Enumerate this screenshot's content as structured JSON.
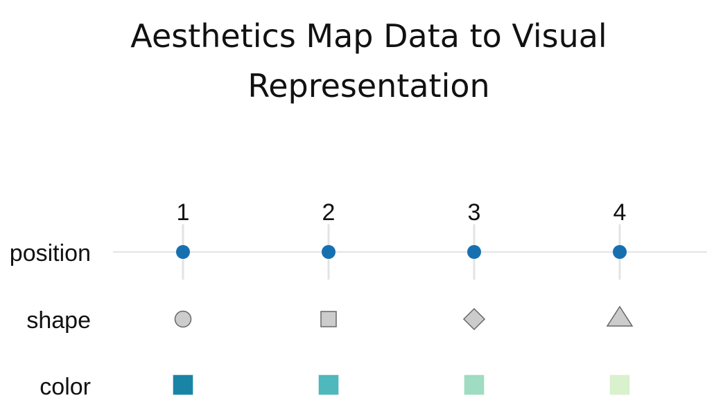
{
  "title_line1": "Aesthetics Map Data to Visual",
  "title_line2": "Representation",
  "values": [
    "1",
    "2",
    "3",
    "4"
  ],
  "rows": {
    "position": "position",
    "shape": "shape",
    "color": "color"
  },
  "position_color": "#1670b0",
  "shapes": [
    "circle",
    "square",
    "diamond",
    "triangle"
  ],
  "shape_fill": "#cccccc",
  "shape_stroke": "#666666",
  "colors": [
    "#1a84a7",
    "#4fb8bc",
    "#9fdcc1",
    "#d9f1cc"
  ],
  "grid": true
}
